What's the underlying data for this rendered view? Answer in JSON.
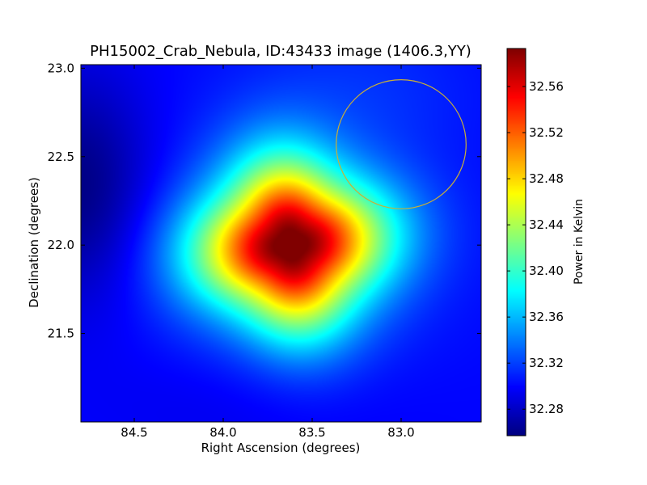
{
  "chart_data": {
    "type": "heatmap",
    "title": "PH15002_Crab_Nebula, ID:43433 image (1406.3,YY)",
    "xlabel": "Right Ascension (degrees)",
    "ylabel": "Declination (degrees)",
    "xlim": [
      84.8,
      82.55
    ],
    "ylim": [
      21.0,
      23.02
    ],
    "x_ticks": [
      {
        "value": 84.5,
        "label": "84.5"
      },
      {
        "value": 84.0,
        "label": "84.0"
      },
      {
        "value": 83.5,
        "label": "83.5"
      },
      {
        "value": 83.0,
        "label": "83.0"
      }
    ],
    "y_ticks": [
      {
        "value": 23.0,
        "label": "23.0"
      },
      {
        "value": 22.5,
        "label": "22.5"
      },
      {
        "value": 22.0,
        "label": "22.0"
      },
      {
        "value": 21.5,
        "label": "21.5"
      }
    ],
    "colorbar": {
      "label": "Power in Kelvin",
      "range": [
        32.257,
        32.593
      ],
      "colormap": "jet",
      "ticks": [
        {
          "value": 32.28,
          "label": "32.28"
        },
        {
          "value": 32.32,
          "label": "32.32"
        },
        {
          "value": 32.36,
          "label": "32.36"
        },
        {
          "value": 32.4,
          "label": "32.40"
        },
        {
          "value": 32.44,
          "label": "32.44"
        },
        {
          "value": 32.48,
          "label": "32.48"
        },
        {
          "value": 32.52,
          "label": "32.52"
        },
        {
          "value": 32.56,
          "label": "32.56"
        }
      ]
    },
    "field": {
      "background_value": 32.3,
      "peak": {
        "ra": 83.62,
        "dec": 22.0,
        "value": 32.593
      },
      "minimum": {
        "ra": 84.8,
        "dec": 22.32,
        "value": 32.257
      }
    },
    "annotation_circle": {
      "ra": 83.0,
      "dec": 22.57,
      "radius_deg": 0.365,
      "color": "#c9b037"
    },
    "grid": false
  }
}
